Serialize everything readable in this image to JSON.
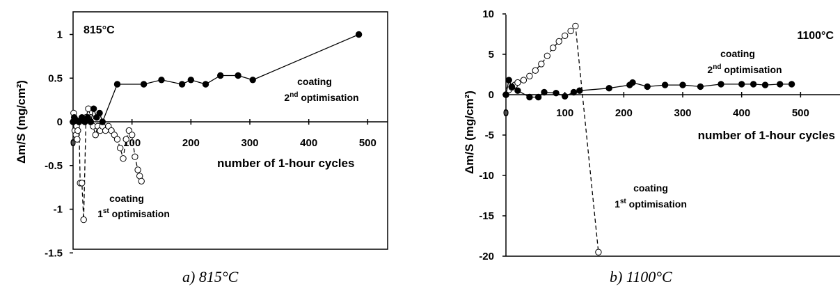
{
  "captions": [
    "a) 815°C",
    "b) 1100°C"
  ],
  "chart_data": [
    {
      "type": "scatter",
      "title": "815°C",
      "xlabel": "number of 1-hour cycles",
      "ylabel": "Δm/S (mg/cm²)",
      "xlim": [
        0,
        550
      ],
      "ylim": [
        -1.5,
        1.25
      ],
      "xticks": [
        "0",
        "100",
        "200",
        "300",
        "400",
        "500"
      ],
      "yticks": [
        "1",
        "0.5",
        "0",
        "-0.5",
        "-1",
        "-1.5"
      ],
      "grid": false,
      "annotations": [
        {
          "id": "a2",
          "text": "coating",
          "sub": "2nd optimisation"
        },
        {
          "id": "a1",
          "text": "coating",
          "sub": "1st optimisation"
        }
      ],
      "series": [
        {
          "id": "second",
          "label": "coating 2nd optimisation",
          "marker": "filled-circle",
          "line": "solid",
          "x": [
            0,
            2,
            5,
            10,
            15,
            20,
            25,
            30,
            35,
            40,
            45,
            50,
            75,
            120,
            150,
            185,
            200,
            225,
            250,
            280,
            305,
            485
          ],
          "y": [
            0,
            0.05,
            0.02,
            0.0,
            0.05,
            0.0,
            0.05,
            0.0,
            0.15,
            0.05,
            0.1,
            0.0,
            0.43,
            0.43,
            0.48,
            0.43,
            0.48,
            0.43,
            0.53,
            0.53,
            0.48,
            1.0
          ]
        },
        {
          "id": "first",
          "label": "coating 1st optimisation",
          "marker": "open-circle",
          "line": "dashed",
          "x": [
            0,
            1,
            2,
            3,
            4,
            5,
            6,
            7,
            8,
            10,
            12,
            15,
            18,
            22,
            26,
            30,
            34,
            38,
            42,
            46,
            50,
            55,
            60,
            65,
            70,
            75,
            80,
            85,
            90,
            95,
            100,
            105,
            110,
            113,
            116
          ],
          "y": [
            0,
            0.1,
            0.0,
            -0.1,
            0.0,
            -0.15,
            -0.05,
            -0.2,
            -0.1,
            0.0,
            -0.7,
            -0.7,
            -1.12,
            0.05,
            0.15,
            0.05,
            -0.05,
            -0.15,
            -0.05,
            -0.1,
            -0.05,
            -0.1,
            -0.05,
            -0.1,
            -0.15,
            -0.2,
            -0.3,
            -0.42,
            -0.2,
            -0.1,
            -0.15,
            -0.4,
            -0.55,
            -0.62,
            -0.68
          ]
        }
      ]
    },
    {
      "type": "scatter",
      "title": "1100°C",
      "xlabel": "number of 1-hour cycles",
      "ylabel": "Δm/S (mg/cm²)",
      "xlim": [
        0,
        550
      ],
      "ylim": [
        -20,
        10
      ],
      "xticks": [
        "0",
        "100",
        "200",
        "300",
        "400",
        "500"
      ],
      "yticks": [
        "10",
        "5",
        "0",
        "-5",
        "-10",
        "-15",
        "-20"
      ],
      "grid": false,
      "annotations": [
        {
          "id": "b2",
          "text": "coating",
          "sub": "2nd optimisation"
        },
        {
          "id": "b1",
          "text": "coating",
          "sub": "1st optimisation"
        }
      ],
      "series": [
        {
          "id": "second",
          "label": "coating 2nd optimisation",
          "marker": "filled-circle",
          "line": "solid",
          "x": [
            0,
            5,
            10,
            20,
            40,
            55,
            65,
            85,
            100,
            115,
            125,
            175,
            210,
            215,
            240,
            270,
            300,
            330,
            365,
            400,
            420,
            440,
            465,
            485
          ],
          "y": [
            0,
            1.8,
            1.0,
            0.5,
            -0.3,
            -0.3,
            0.3,
            0.2,
            -0.2,
            0.3,
            0.5,
            0.8,
            1.2,
            1.5,
            1.0,
            1.2,
            1.2,
            1.0,
            1.3,
            1.3,
            1.3,
            1.2,
            1.3,
            1.3
          ]
        },
        {
          "id": "first",
          "label": "coating 1st optimisation",
          "marker": "open-circle",
          "line": "dashed",
          "x": [
            0,
            5,
            10,
            15,
            20,
            30,
            40,
            50,
            60,
            70,
            80,
            90,
            100,
            110,
            118,
            157
          ],
          "y": [
            0,
            0.6,
            0.9,
            1.2,
            1.5,
            1.8,
            2.3,
            3.0,
            3.8,
            4.8,
            5.8,
            6.6,
            7.3,
            7.9,
            8.5,
            -19.5
          ]
        }
      ]
    }
  ]
}
